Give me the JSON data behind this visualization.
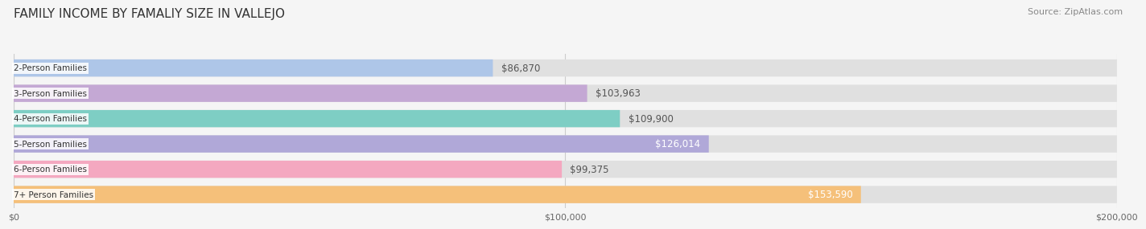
{
  "title": "FAMILY INCOME BY FAMALIY SIZE IN VALLEJO",
  "source": "Source: ZipAtlas.com",
  "categories": [
    "2-Person Families",
    "3-Person Families",
    "4-Person Families",
    "5-Person Families",
    "6-Person Families",
    "7+ Person Families"
  ],
  "values": [
    86870,
    103963,
    109900,
    126014,
    99375,
    153590
  ],
  "labels": [
    "$86,870",
    "$103,963",
    "$109,900",
    "$126,014",
    "$99,375",
    "$153,590"
  ],
  "bar_colors": [
    "#aec6e8",
    "#c4a8d4",
    "#7ecec4",
    "#b0a8d8",
    "#f4a8c0",
    "#f5c07a"
  ],
  "bar_bg_color": "#e0e0e0",
  "max_value": 200000,
  "x_ticks": [
    0,
    100000,
    200000
  ],
  "x_tick_labels": [
    "$0",
    "$100,000",
    "$200,000"
  ],
  "background_color": "#f5f5f5",
  "label_color_inside": "#ffffff",
  "label_color_outside": "#555555",
  "title_fontsize": 11,
  "source_fontsize": 8,
  "bar_height": 0.62,
  "label_fontsize": 8.5,
  "inside_threshold": 115000
}
